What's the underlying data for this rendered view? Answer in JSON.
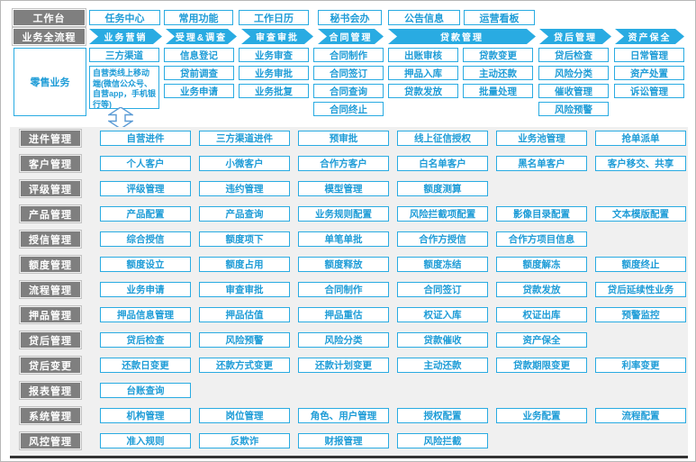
{
  "colors": {
    "accent": "#29abe2",
    "accent_text": "#1e9cd7",
    "label_bg": "#7f7f7f",
    "section_bg": "#f0f0f0",
    "frame_border": "#b7b7b7",
    "bottom_bar": "#333333"
  },
  "icons": {
    "connector": "double-vertical-arrow-icon"
  },
  "workbench": {
    "label": "工作台",
    "items": [
      "任务中心",
      "常用功能",
      "工作日历",
      "秘书会办",
      "公告信息",
      "运营看板"
    ]
  },
  "flow": {
    "label": "业务全流程",
    "stages": [
      "业务营销",
      "受理&调查",
      "审查审批",
      "合同管理",
      "贷款管理",
      "贷后管理",
      "资产保全"
    ]
  },
  "retail": {
    "label": "零售业务",
    "columns": [
      {
        "items": [
          "三方渠道",
          "自营类线上移动端(微信公众号、自营app，手机银行等)"
        ]
      },
      {
        "items": [
          "信息登记",
          "贷前调查",
          "业务申请"
        ]
      },
      {
        "items": [
          "业务审查",
          "业务审批",
          "业务批复"
        ]
      },
      {
        "items": [
          "合同制作",
          "合同签订",
          "合同查询",
          "合同终止"
        ]
      },
      {
        "items": [
          "出账审核",
          "押品入库",
          "贷款发放"
        ]
      },
      {
        "items": [
          "贷款变更",
          "主动还款",
          "批量处理"
        ]
      },
      {
        "items": [
          "贷后检查",
          "风险分类",
          "催收管理",
          "风险预警"
        ]
      },
      {
        "items": [
          "日常管理",
          "资产处置",
          "诉讼管理"
        ]
      }
    ]
  },
  "modules": [
    {
      "label": "进件管理",
      "items": [
        "自营进件",
        "三方渠道进件",
        "预审批",
        "线上征信授权",
        "业务池管理",
        "抢单派单"
      ]
    },
    {
      "label": "客户管理",
      "items": [
        "个人客户",
        "小微客户",
        "合作方客户",
        "白名单客户",
        "黑名单客户",
        "客户移交、共享"
      ]
    },
    {
      "label": "评级管理",
      "items": [
        "评级管理",
        "违约管理",
        "模型管理",
        "额度测算"
      ]
    },
    {
      "label": "产品管理",
      "items": [
        "产品配置",
        "产品查询",
        "业务规则配置",
        "风险拦截项配置",
        "影像目录配置",
        "文本模版配置"
      ]
    },
    {
      "label": "授信管理",
      "items": [
        "综合授信",
        "额度项下",
        "单笔单批",
        "合作方授信",
        "合作方项目信息"
      ]
    },
    {
      "label": "额度管理",
      "items": [
        "额度设立",
        "额度占用",
        "额度释放",
        "额度冻结",
        "额度解冻",
        "额度终止"
      ]
    },
    {
      "label": "流程管理",
      "items": [
        "业务申请",
        "审查审批",
        "合同制作",
        "合同签订",
        "贷款发放",
        "贷后延续性业务"
      ]
    },
    {
      "label": "押品管理",
      "items": [
        "押品信息管理",
        "押品估值",
        "押品重估",
        "权证入库",
        "权证出库",
        "预警监控"
      ]
    },
    {
      "label": "贷后管理",
      "items": [
        "贷后检查",
        "风险预警",
        "风险分类",
        "贷款催收",
        "资产保全"
      ]
    },
    {
      "label": "贷后变更",
      "items": [
        "还款日变更",
        "还款方式变更",
        "还款计划变更",
        "主动还款",
        "贷款期限变更",
        "利率变更"
      ]
    },
    {
      "label": "报表管理",
      "items": [
        "台账查询"
      ]
    },
    {
      "label": "系统管理",
      "items": [
        "机构管理",
        "岗位管理",
        "角色、用户管理",
        "授权配置",
        "业务配置",
        "流程配置"
      ]
    },
    {
      "label": "风控管理",
      "items": [
        "准入规则",
        "反欺诈",
        "财报管理",
        "风险拦截"
      ]
    }
  ]
}
